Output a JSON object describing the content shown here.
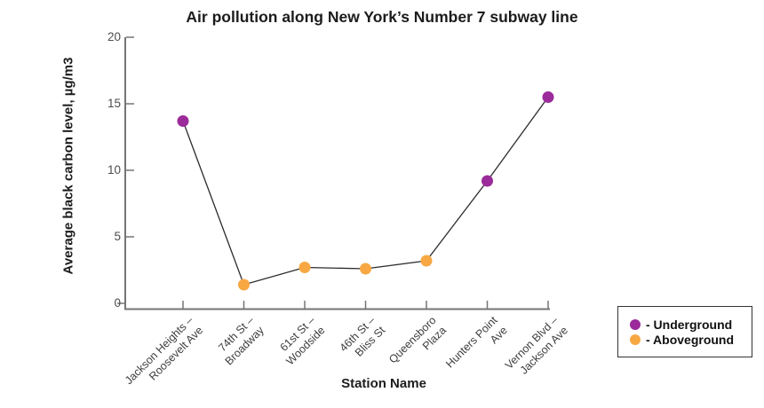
{
  "chart_data": {
    "type": "line",
    "title": "Air pollution along New York’s Number 7 subway line",
    "xlabel": "Station Name",
    "ylabel": "Average black carbon level, µg/m3",
    "ylim": [
      0,
      20
    ],
    "yticks": [
      0,
      5,
      10,
      15,
      20
    ],
    "grid": false,
    "legend_position": "outside-bottom-right",
    "line_color": "#2b2b2b",
    "axis_color": "#757575",
    "categories": [
      "Jackson Heights – Roosevelt Ave",
      "74th St – Broadway",
      "61st St – Woodside",
      "46th St – Bliss St",
      "Queensboro Plaza",
      "Hunters Point Ave",
      "Vernon Blvd – Jackson Ave"
    ],
    "category_display_lines": [
      [
        "Jackson Heights –",
        "Roosevelt Ave"
      ],
      [
        "74th St –",
        "Broadway"
      ],
      [
        "61st St –",
        "Woodside"
      ],
      [
        "46th St –",
        "Bliss St"
      ],
      [
        "Queensboro",
        "Plaza"
      ],
      [
        "Hunters Point",
        "Ave"
      ],
      [
        "Vernon Blvd –",
        "Jackson Ave"
      ]
    ],
    "points": [
      {
        "station": "Jackson Heights – Roosevelt Ave",
        "value": 13.7,
        "type": "Underground"
      },
      {
        "station": "74th St – Broadway",
        "value": 1.4,
        "type": "Aboveground"
      },
      {
        "station": "61st St – Woodside",
        "value": 2.7,
        "type": "Aboveground"
      },
      {
        "station": "46th St – Bliss St",
        "value": 2.6,
        "type": "Aboveground"
      },
      {
        "station": "Queensboro Plaza",
        "value": 3.2,
        "type": "Aboveground"
      },
      {
        "station": "Hunters Point Ave",
        "value": 9.2,
        "type": "Underground"
      },
      {
        "station": "Vernon Blvd – Jackson Ave",
        "value": 15.5,
        "type": "Underground"
      }
    ],
    "legend": [
      {
        "label": "- Underground",
        "type": "Underground",
        "color": "#9b2b9b"
      },
      {
        "label": "- Aboveground",
        "type": "Aboveground",
        "color": "#f8a843"
      }
    ]
  }
}
